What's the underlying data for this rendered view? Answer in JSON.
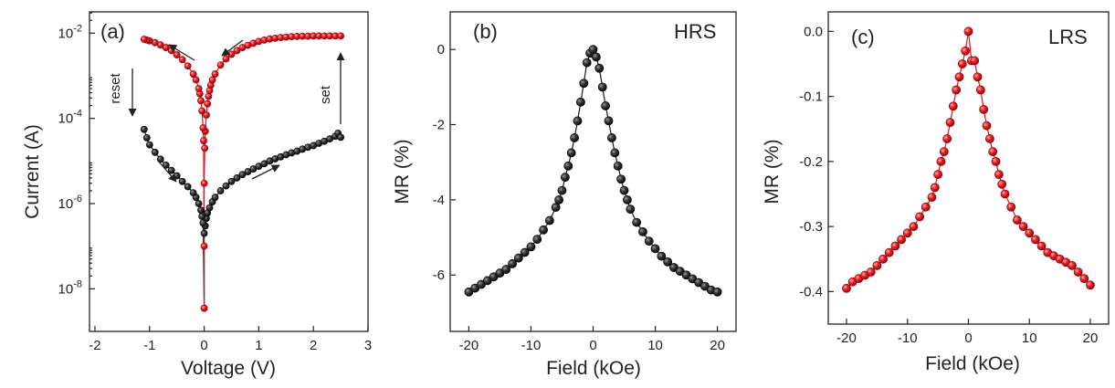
{
  "colors": {
    "black_series": "#222222",
    "red_series": "#e0141a",
    "axis": "#222222"
  },
  "chart_data": [
    {
      "type": "scatter",
      "panel_label": "(a)",
      "xlabel": "Voltage (V)",
      "ylabel": "Current (A)",
      "xlim": [
        -2.1,
        3.0
      ],
      "ylim_log10": [
        -9.0,
        -1.5
      ],
      "yscale": "log",
      "x_ticks": [
        -2,
        -1,
        0,
        1,
        2,
        3
      ],
      "x_tick_labels": [
        "-2",
        "-1",
        "0",
        "1",
        "2",
        "3"
      ],
      "y_ticks_log10": [
        -8,
        -6,
        -4,
        -2
      ],
      "y_tick_labels": [
        {
          "base": "10",
          "exp": "-8"
        },
        {
          "base": "10",
          "exp": "-6"
        },
        {
          "base": "10",
          "exp": "-4"
        },
        {
          "base": "10",
          "exp": "-2"
        }
      ],
      "annotations": [
        {
          "text": "reset",
          "rotated": true,
          "near": [
            -1.35,
            -3.1
          ]
        },
        {
          "text": "set",
          "rotated": true,
          "near": [
            2.25,
            -3.8
          ]
        }
      ],
      "series": [
        {
          "color": "black",
          "points": [
            [
              0.0,
              3.5e-09
            ],
            [
              0.0,
              2e-07
            ],
            [
              0.02,
              3e-07
            ],
            [
              0.04,
              4.5e-07
            ],
            [
              0.06,
              6e-07
            ],
            [
              0.1,
              8e-07
            ],
            [
              0.15,
              1.1e-06
            ],
            [
              0.2,
              1.4e-06
            ],
            [
              0.3,
              2e-06
            ],
            [
              0.4,
              2.6e-06
            ],
            [
              0.5,
              3.3e-06
            ],
            [
              0.6,
              4e-06
            ],
            [
              0.7,
              4.8e-06
            ],
            [
              0.8,
              5.6e-06
            ],
            [
              0.9,
              6.5e-06
            ],
            [
              1.0,
              7.5e-06
            ],
            [
              1.1,
              8.6e-06
            ],
            [
              1.2,
              1e-05
            ],
            [
              1.3,
              1.12e-05
            ],
            [
              1.4,
              1.25e-05
            ],
            [
              1.5,
              1.4e-05
            ],
            [
              1.6,
              1.55e-05
            ],
            [
              1.7,
              1.7e-05
            ],
            [
              1.8,
              1.9e-05
            ],
            [
              1.9,
              2.1e-05
            ],
            [
              2.0,
              2.3e-05
            ],
            [
              2.1,
              2.6e-05
            ],
            [
              2.2,
              2.9e-05
            ],
            [
              2.3,
              3.3e-05
            ],
            [
              2.4,
              3.8e-05
            ],
            [
              2.45,
              4.5e-05
            ],
            [
              2.5,
              3.6e-05
            ],
            [
              -0.02,
              3.5e-07
            ],
            [
              -0.04,
              5e-07
            ],
            [
              -0.06,
              7e-07
            ],
            [
              -0.1,
              1e-06
            ],
            [
              -0.15,
              1.4e-06
            ],
            [
              -0.2,
              1.8e-06
            ],
            [
              -0.3,
              2.5e-06
            ],
            [
              -0.4,
              3.3e-06
            ],
            [
              -0.5,
              4.5e-06
            ],
            [
              -0.6,
              6e-06
            ],
            [
              -0.7,
              8e-06
            ],
            [
              -0.8,
              1.1e-05
            ],
            [
              -0.9,
              1.6e-05
            ],
            [
              -1.0,
              2.4e-05
            ],
            [
              -1.05,
              3.5e-05
            ],
            [
              -1.1,
              5.5e-05
            ]
          ]
        },
        {
          "color": "red",
          "points": [
            [
              0.0,
              3.5e-09
            ],
            [
              0.0,
              1e-07
            ],
            [
              0.0,
              3e-06
            ],
            [
              0.01,
              2e-05
            ],
            [
              0.02,
              5e-05
            ],
            [
              0.04,
              0.00012
            ],
            [
              0.06,
              0.00022
            ],
            [
              0.08,
              0.00033
            ],
            [
              0.1,
              0.00045
            ],
            [
              0.12,
              0.0006
            ],
            [
              0.15,
              0.0008
            ],
            [
              0.2,
              0.0011
            ],
            [
              0.3,
              0.0018
            ],
            [
              0.4,
              0.0025
            ],
            [
              0.5,
              0.0032
            ],
            [
              0.6,
              0.0039
            ],
            [
              0.7,
              0.0046
            ],
            [
              0.8,
              0.0052
            ],
            [
              0.9,
              0.0058
            ],
            [
              1.0,
              0.0064
            ],
            [
              1.1,
              0.0069
            ],
            [
              1.2,
              0.0073
            ],
            [
              1.3,
              0.0076
            ],
            [
              1.4,
              0.0079
            ],
            [
              1.5,
              0.0081
            ],
            [
              1.6,
              0.0083
            ],
            [
              1.7,
              0.0084
            ],
            [
              1.8,
              0.0085
            ],
            [
              1.9,
              0.0085
            ],
            [
              2.0,
              0.0086
            ],
            [
              2.1,
              0.0086
            ],
            [
              2.2,
              0.0086
            ],
            [
              2.3,
              0.0086
            ],
            [
              2.4,
              0.0086
            ],
            [
              2.5,
              0.0086
            ],
            [
              -0.01,
              3e-05
            ],
            [
              -0.02,
              6e-05
            ],
            [
              -0.04,
              0.00015
            ],
            [
              -0.06,
              0.00026
            ],
            [
              -0.08,
              0.00038
            ],
            [
              -0.1,
              0.0005
            ],
            [
              -0.15,
              0.0008
            ],
            [
              -0.2,
              0.0011
            ],
            [
              -0.3,
              0.0017
            ],
            [
              -0.4,
              0.0024
            ],
            [
              -0.5,
              0.0031
            ],
            [
              -0.6,
              0.0039
            ],
            [
              -0.7,
              0.0046
            ],
            [
              -0.8,
              0.0053
            ],
            [
              -0.9,
              0.006
            ],
            [
              -1.0,
              0.0066
            ],
            [
              -1.05,
              0.0069
            ],
            [
              -1.1,
              0.0072
            ]
          ]
        }
      ]
    },
    {
      "type": "line",
      "panel_label": "(b)",
      "state_label": "HRS",
      "xlabel": "Field (kOe)",
      "ylabel": "MR (%)",
      "xlim": [
        -23,
        23
      ],
      "ylim": [
        -7.5,
        1.0
      ],
      "x_ticks": [
        -20,
        -10,
        0,
        10,
        20
      ],
      "x_tick_labels": [
        "-20",
        "-10",
        "0",
        "10",
        "20"
      ],
      "y_ticks": [
        -6,
        -4,
        -2,
        0
      ],
      "y_tick_labels": [
        "-6",
        "-4",
        "-2",
        "0"
      ],
      "series": [
        {
          "color": "black",
          "x": [
            -20,
            -19,
            -18,
            -17,
            -16,
            -15,
            -14,
            -13,
            -12,
            -11,
            -10,
            -9,
            -8,
            -7,
            -6,
            -5.5,
            -5,
            -4.5,
            -4,
            -3.5,
            -3,
            -2.5,
            -2,
            -1.5,
            -1,
            -0.5,
            0,
            0.5,
            1,
            1.5,
            2,
            2.5,
            3,
            3.5,
            4,
            4.5,
            5,
            5.5,
            6,
            7,
            8,
            9,
            10,
            11,
            12,
            13,
            14,
            15,
            16,
            17,
            18,
            19,
            20
          ],
          "values": [
            -6.45,
            -6.35,
            -6.25,
            -6.15,
            -6.05,
            -5.95,
            -5.85,
            -5.7,
            -5.55,
            -5.4,
            -5.25,
            -5.05,
            -4.8,
            -4.55,
            -4.2,
            -4.0,
            -3.75,
            -3.4,
            -3.1,
            -2.75,
            -2.35,
            -1.9,
            -1.4,
            -0.9,
            -0.35,
            -0.1,
            0.0,
            -0.2,
            -0.5,
            -1.0,
            -1.5,
            -1.9,
            -2.35,
            -2.75,
            -3.1,
            -3.45,
            -3.75,
            -4.0,
            -4.25,
            -4.6,
            -4.85,
            -5.1,
            -5.3,
            -5.5,
            -5.65,
            -5.8,
            -5.9,
            -6.0,
            -6.1,
            -6.2,
            -6.3,
            -6.4,
            -6.45
          ]
        }
      ]
    },
    {
      "type": "line",
      "panel_label": "(c)",
      "state_label": "LRS",
      "xlabel": "Field (kOe)",
      "ylabel": "MR (%)",
      "xlim": [
        -23,
        23
      ],
      "ylim": [
        -0.45,
        0.03
      ],
      "x_ticks": [
        -20,
        -10,
        0,
        10,
        20
      ],
      "x_tick_labels": [
        "-20",
        "-10",
        "0",
        "10",
        "20"
      ],
      "y_ticks": [
        -0.4,
        -0.3,
        -0.2,
        -0.1,
        0.0
      ],
      "y_tick_labels": [
        "-0.4",
        "-0.3",
        "-0.2",
        "-0.1",
        "0.0"
      ],
      "series": [
        {
          "color": "red",
          "x": [
            -20,
            -19,
            -18,
            -17,
            -16,
            -15,
            -14,
            -13,
            -12,
            -11,
            -10,
            -9,
            -8,
            -7,
            -6,
            -5.5,
            -5,
            -4.5,
            -4,
            -3.5,
            -3,
            -2.5,
            -2,
            -1.5,
            -1,
            -0.5,
            0,
            0.5,
            1,
            1.5,
            2,
            2.5,
            3,
            3.5,
            4,
            4.5,
            5,
            5.5,
            6,
            7,
            8,
            9,
            10,
            11,
            12,
            13,
            14,
            15,
            16,
            17,
            18,
            19,
            20
          ],
          "values": [
            -0.395,
            -0.385,
            -0.38,
            -0.375,
            -0.37,
            -0.36,
            -0.35,
            -0.34,
            -0.33,
            -0.32,
            -0.31,
            -0.3,
            -0.285,
            -0.27,
            -0.255,
            -0.24,
            -0.22,
            -0.2,
            -0.185,
            -0.165,
            -0.14,
            -0.115,
            -0.09,
            -0.07,
            -0.05,
            -0.03,
            0.0,
            -0.045,
            -0.045,
            -0.07,
            -0.09,
            -0.12,
            -0.145,
            -0.165,
            -0.185,
            -0.2,
            -0.22,
            -0.235,
            -0.25,
            -0.27,
            -0.29,
            -0.3,
            -0.31,
            -0.32,
            -0.33,
            -0.34,
            -0.345,
            -0.35,
            -0.355,
            -0.36,
            -0.37,
            -0.38,
            -0.39
          ]
        }
      ]
    }
  ]
}
